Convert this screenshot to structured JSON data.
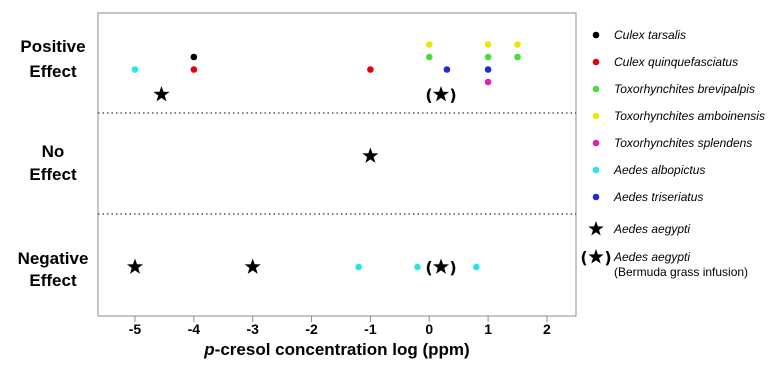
{
  "chart_data": {
    "type": "scatter",
    "xlabel_italic": "p",
    "xlabel_rest": "-cresol concentration log (ppm)",
    "xlim": [
      -5.6,
      2.6
    ],
    "xticks": [
      -5,
      -4,
      -3,
      -2,
      -1,
      0,
      1,
      2
    ],
    "xtick_labels": [
      "-5",
      "-4",
      "-3",
      "-2",
      "-1",
      "0",
      "1",
      "2"
    ],
    "rows": [
      {
        "key": "positive",
        "label_lines": [
          "Positive",
          "Effect"
        ]
      },
      {
        "key": "none",
        "label_lines": [
          "No",
          "Effect"
        ]
      },
      {
        "key": "negative",
        "label_lines": [
          "Negative",
          "Effect"
        ]
      }
    ],
    "legend_placement": "right",
    "series": [
      {
        "name": "Culex tarsalis",
        "color": "#000000",
        "marker": "dot",
        "points": [
          {
            "x": -4,
            "effect": "positive",
            "slot": 0
          }
        ]
      },
      {
        "name": "Culex quinquefasciatus",
        "color": "#e3000f",
        "marker": "dot",
        "points": [
          {
            "x": -4,
            "effect": "positive",
            "slot": 1
          },
          {
            "x": -1,
            "effect": "positive",
            "slot": 1
          }
        ]
      },
      {
        "name": "Toxorhynchites brevipalpis",
        "color": "#4cd93a",
        "marker": "dot",
        "points": [
          {
            "x": 0,
            "effect": "positive",
            "slot": 0
          },
          {
            "x": 1,
            "effect": "positive",
            "slot": 0
          },
          {
            "x": 1.5,
            "effect": "positive",
            "slot": 0
          }
        ]
      },
      {
        "name": "Toxorhynchites amboinensis",
        "color": "#ede60c",
        "marker": "dot",
        "points": [
          {
            "x": 0,
            "effect": "positive",
            "slot": -1
          },
          {
            "x": 1,
            "effect": "positive",
            "slot": -1
          },
          {
            "x": 1.5,
            "effect": "positive",
            "slot": -1
          }
        ]
      },
      {
        "name": "Toxorhynchites splendens",
        "color": "#e020b4",
        "marker": "dot",
        "points": [
          {
            "x": 1,
            "effect": "positive",
            "slot": 2
          }
        ]
      },
      {
        "name": "Aedes albopictus",
        "color": "#27e6e6",
        "marker": "dot",
        "points": [
          {
            "x": -5,
            "effect": "positive",
            "slot": 1
          },
          {
            "x": -1.2,
            "effect": "negative",
            "slot": 0
          },
          {
            "x": -0.2,
            "effect": "negative",
            "slot": 0
          },
          {
            "x": 0.8,
            "effect": "negative",
            "slot": 0
          }
        ]
      },
      {
        "name": "Aedes triseriatus",
        "color": "#1f2bd0",
        "marker": "dot",
        "points": [
          {
            "x": 0.3,
            "effect": "positive",
            "slot": 1
          },
          {
            "x": 1,
            "effect": "positive",
            "slot": 1
          }
        ]
      },
      {
        "name": "Aedes aegypti",
        "color": "#000000",
        "marker": "star",
        "points": [
          {
            "x": -4.55,
            "effect": "positive",
            "slot": 3
          },
          {
            "x": -1,
            "effect": "none",
            "slot": 0
          },
          {
            "x": -5,
            "effect": "negative",
            "slot": 0
          },
          {
            "x": -3,
            "effect": "negative",
            "slot": 0
          }
        ]
      },
      {
        "name": "Aedes aegypti",
        "sublabel": "(Bermuda grass infusion)",
        "color": "#000000",
        "marker": "star-paren",
        "points": [
          {
            "x": 0.2,
            "effect": "positive",
            "slot": 3
          },
          {
            "x": 0.2,
            "effect": "negative",
            "slot": 0
          }
        ]
      }
    ]
  }
}
